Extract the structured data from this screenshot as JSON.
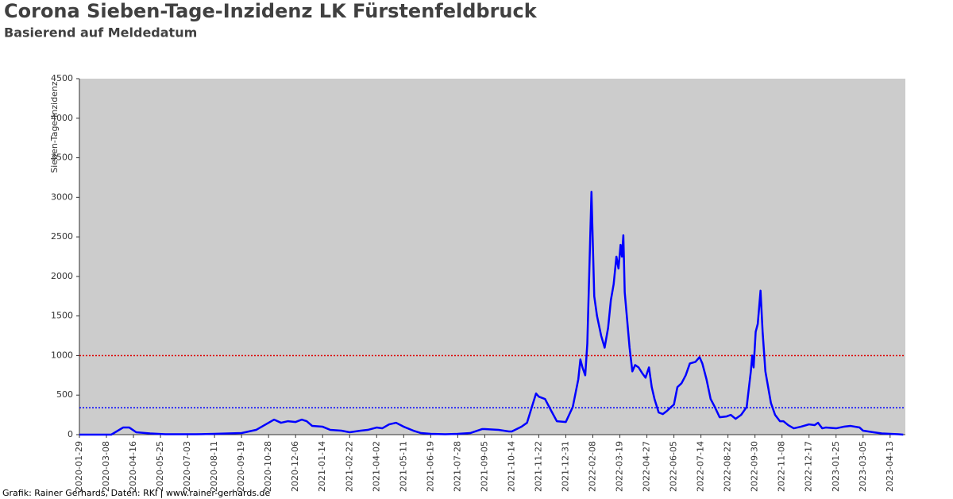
{
  "chart_data": {
    "type": "line",
    "title": "Corona Sieben-Tage-Inzidenz LK Fürstenfeldbruck",
    "subtitle": "Basierend auf Meldedatum",
    "y_label": "Sieben-Tage-Inzidenz",
    "source": "Grafik: Rainer Gerhards, Daten: RKI | www.rainer-gerhards.de",
    "color": "#0000ff",
    "plot_background": "#cccccc",
    "x": [
      "2020-01-29",
      "2020-03-15",
      "2020-04-01",
      "2020-04-10",
      "2020-04-20",
      "2020-05-10",
      "2020-06-01",
      "2020-07-15",
      "2020-08-11",
      "2020-09-19",
      "2020-10-10",
      "2020-10-28",
      "2020-11-05",
      "2020-11-15",
      "2020-11-25",
      "2020-12-06",
      "2020-12-15",
      "2020-12-22",
      "2020-12-30",
      "2021-01-14",
      "2021-01-25",
      "2021-02-10",
      "2021-02-22",
      "2021-03-10",
      "2021-03-20",
      "2021-04-02",
      "2021-04-10",
      "2021-04-20",
      "2021-04-30",
      "2021-05-11",
      "2021-05-25",
      "2021-06-05",
      "2021-06-19",
      "2021-07-10",
      "2021-07-28",
      "2021-08-15",
      "2021-09-01",
      "2021-09-05",
      "2021-09-25",
      "2021-10-10",
      "2021-10-14",
      "2021-10-28",
      "2021-11-05",
      "2021-11-12",
      "2021-11-18",
      "2021-11-22",
      "2021-12-01",
      "2021-12-10",
      "2021-12-18",
      "2021-12-31",
      "2022-01-10",
      "2022-01-18",
      "2022-01-21",
      "2022-01-24",
      "2022-01-28",
      "2022-01-31",
      "2022-02-06",
      "2022-02-08",
      "2022-02-10",
      "2022-02-14",
      "2022-02-20",
      "2022-02-25",
      "2022-03-02",
      "2022-03-06",
      "2022-03-10",
      "2022-03-14",
      "2022-03-17",
      "2022-03-20",
      "2022-03-22",
      "2022-03-24",
      "2022-03-26",
      "2022-03-29",
      "2022-04-02",
      "2022-04-06",
      "2022-04-10",
      "2022-04-15",
      "2022-04-20",
      "2022-04-25",
      "2022-04-30",
      "2022-05-04",
      "2022-05-08",
      "2022-05-14",
      "2022-05-20",
      "2022-05-26",
      "2022-06-01",
      "2022-06-05",
      "2022-06-10",
      "2022-06-16",
      "2022-06-22",
      "2022-06-28",
      "2022-07-06",
      "2022-07-12",
      "2022-07-16",
      "2022-07-22",
      "2022-07-28",
      "2022-08-03",
      "2022-08-10",
      "2022-08-20",
      "2022-08-26",
      "2022-09-02",
      "2022-09-10",
      "2022-09-18",
      "2022-09-24",
      "2022-09-26",
      "2022-09-28",
      "2022-10-01",
      "2022-10-04",
      "2022-10-08",
      "2022-10-11",
      "2022-10-15",
      "2022-10-19",
      "2022-10-23",
      "2022-10-29",
      "2022-11-05",
      "2022-11-10",
      "2022-11-17",
      "2022-11-25",
      "2022-12-05",
      "2022-12-17",
      "2022-12-25",
      "2022-12-30",
      "2023-01-05",
      "2023-01-10",
      "2023-01-25",
      "2023-02-05",
      "2023-02-15",
      "2023-02-28",
      "2023-03-05",
      "2023-03-20",
      "2023-04-01",
      "2023-04-13",
      "2023-04-25",
      "2023-05-02"
    ],
    "values": [
      0,
      0,
      90,
      90,
      30,
      15,
      5,
      5,
      10,
      20,
      60,
      150,
      190,
      150,
      170,
      160,
      190,
      170,
      110,
      100,
      60,
      50,
      30,
      50,
      60,
      90,
      80,
      130,
      150,
      100,
      50,
      20,
      10,
      5,
      10,
      20,
      70,
      70,
      60,
      40,
      40,
      100,
      150,
      350,
      520,
      480,
      450,
      300,
      170,
      160,
      350,
      700,
      950,
      850,
      750,
      1150,
      3070,
      2400,
      1750,
      1500,
      1250,
      1100,
      1350,
      1700,
      1900,
      2250,
      2100,
      2400,
      2250,
      2520,
      1800,
      1500,
      1100,
      800,
      880,
      850,
      780,
      720,
      850,
      600,
      450,
      280,
      260,
      300,
      350,
      380,
      600,
      650,
      750,
      900,
      920,
      980,
      900,
      700,
      450,
      350,
      220,
      230,
      250,
      200,
      250,
      350,
      800,
      1000,
      850,
      1300,
      1400,
      1820,
      1300,
      800,
      600,
      400,
      250,
      170,
      170,
      120,
      80,
      100,
      130,
      120,
      150,
      80,
      90,
      80,
      100,
      110,
      90,
      50,
      30,
      15,
      10,
      5,
      0
    ],
    "xlim": [
      "2020-01-29",
      "2023-05-05"
    ],
    "xticks": [
      "2020-01-29",
      "2020-03-08",
      "2020-04-16",
      "2020-05-25",
      "2020-07-03",
      "2020-08-11",
      "2020-09-19",
      "2020-10-28",
      "2020-12-06",
      "2021-01-14",
      "2021-02-22",
      "2021-04-02",
      "2021-05-11",
      "2021-06-19",
      "2021-07-28",
      "2021-09-05",
      "2021-10-14",
      "2021-11-22",
      "2021-12-31",
      "2022-02-08",
      "2022-03-19",
      "2022-04-27",
      "2022-06-05",
      "2022-07-14",
      "2022-08-22",
      "2022-09-30",
      "2022-11-08",
      "2022-12-17",
      "2023-01-25",
      "2023-03-05",
      "2023-04-13"
    ],
    "ylim": [
      0,
      4500
    ],
    "yticks": [
      0,
      500,
      1000,
      1500,
      2000,
      2500,
      3000,
      3500,
      4000,
      4500
    ],
    "reference_lines": [
      {
        "value": 1000,
        "color": "#dd0000"
      },
      {
        "value": 340,
        "color": "#0000ff"
      }
    ]
  }
}
